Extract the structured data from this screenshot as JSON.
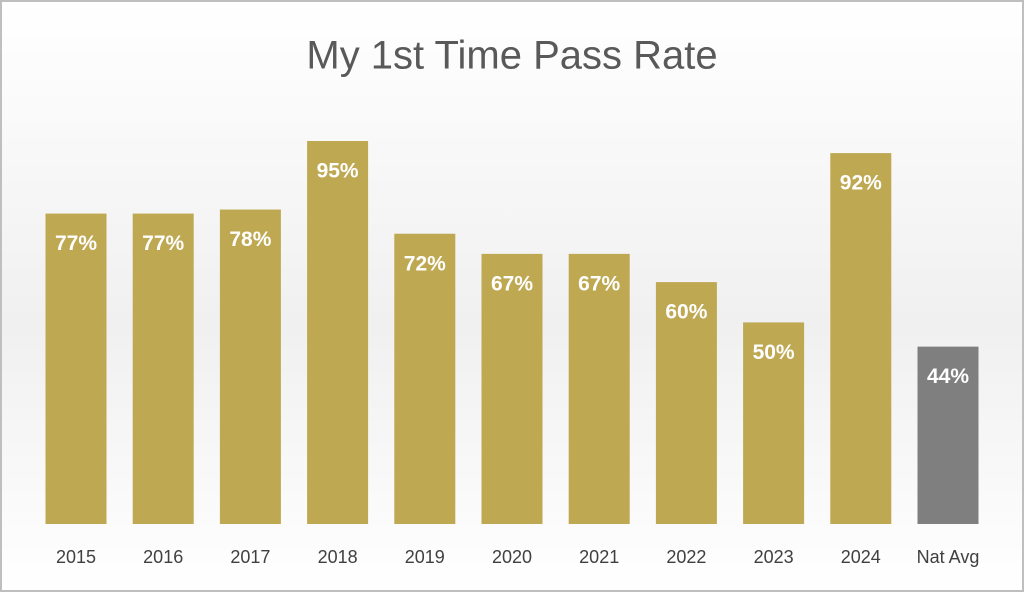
{
  "chart_data": {
    "type": "bar",
    "title": "My 1st Time Pass Rate",
    "categories": [
      "2015",
      "2016",
      "2017",
      "2018",
      "2019",
      "2020",
      "2021",
      "2022",
      "2023",
      "2024",
      "Nat Avg"
    ],
    "values": [
      77,
      77,
      78,
      95,
      72,
      67,
      67,
      60,
      50,
      92,
      44
    ],
    "value_labels": [
      "77%",
      "77%",
      "78%",
      "95%",
      "72%",
      "67%",
      "67%",
      "60%",
      "50%",
      "92%",
      "44%"
    ],
    "colors": [
      "#bfa852",
      "#bfa852",
      "#bfa852",
      "#bfa852",
      "#bfa852",
      "#bfa852",
      "#bfa852",
      "#bfa852",
      "#bfa852",
      "#bfa852",
      "#7f7f7f"
    ],
    "grid": false
  }
}
